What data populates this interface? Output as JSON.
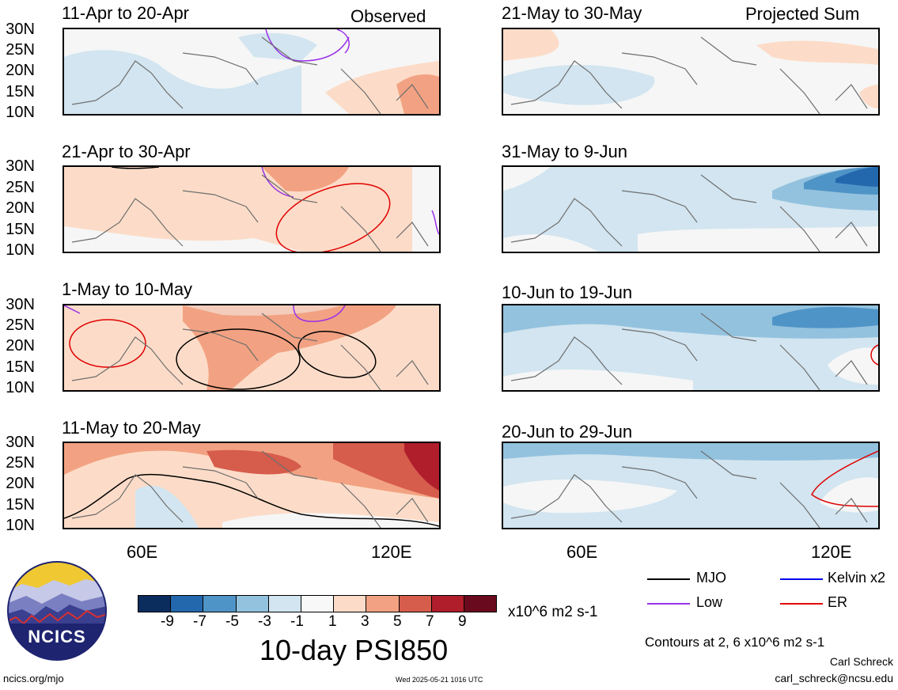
{
  "header": {
    "observed_label": "Observed",
    "projected_label": "Projected Sum"
  },
  "panels": [
    {
      "title": "11-Apr to 20-Apr",
      "side": "left"
    },
    {
      "title": "21-Apr to 30-Apr",
      "side": "left"
    },
    {
      "title": "1-May to 10-May",
      "side": "left"
    },
    {
      "title": "11-May to 20-May",
      "side": "left"
    },
    {
      "title": "21-May to 30-May",
      "side": "right"
    },
    {
      "title": "31-May to 9-Jun",
      "side": "right"
    },
    {
      "title": "10-Jun to 19-Jun",
      "side": "right"
    },
    {
      "title": "20-Jun to 29-Jun",
      "side": "right"
    }
  ],
  "lat_labels": [
    "30N",
    "25N",
    "20N",
    "15N",
    "10N"
  ],
  "lon_labels": [
    "60E",
    "120E"
  ],
  "colorbar": {
    "ticks": [
      "-9",
      "-7",
      "-5",
      "-3",
      "-1",
      "1",
      "3",
      "5",
      "7",
      "9"
    ],
    "units": "x10^6 m2 s-1",
    "colors": [
      "#0b2d5e",
      "#2368ad",
      "#4f94c6",
      "#93c2de",
      "#d2e5f0",
      "#f8f8f8",
      "#fcdcc8",
      "#f2a282",
      "#d65c4c",
      "#b01e2c",
      "#6a0a1e"
    ]
  },
  "title": "10-day PSI850",
  "legend": [
    {
      "label": "MJO",
      "color": "#000000"
    },
    {
      "label": "Kelvin x2",
      "color": "#0000ee"
    },
    {
      "label": "Low",
      "color": "#9a30e8"
    },
    {
      "label": "ER",
      "color": "#e00000"
    }
  ],
  "contours_note": "Contours at 2, 6 x10^6 m2 s-1",
  "logo_text": "NCICS",
  "credit_name": "Carl Schreck",
  "credit_email": "carl_schreck@ncsu.edu",
  "url": "ncics.org/mjo",
  "timestamp": "Wed 2025-05-21 1016 UTC"
}
